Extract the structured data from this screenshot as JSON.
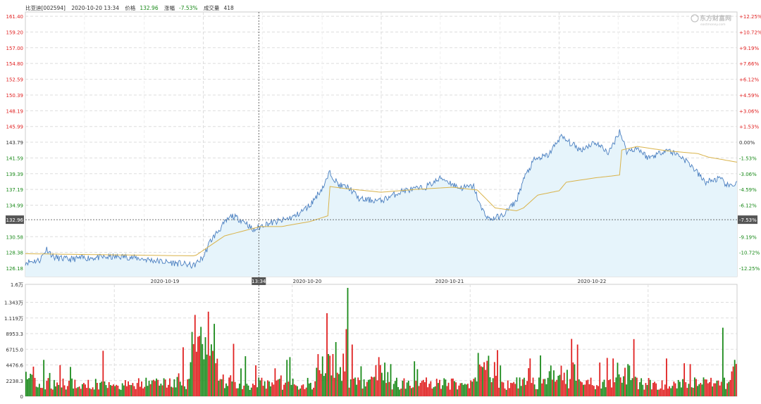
{
  "header": {
    "stock": "比亚迪[002594]",
    "datetime": "2020-10-20 13:34",
    "price_label": "价格",
    "price": "132.96",
    "change_label": "涨幅",
    "change": "-7.53%",
    "volume_label": "成交量",
    "volume": "418"
  },
  "watermark": {
    "name": "东方财富网",
    "url": "eastmoney.com"
  },
  "colors": {
    "up": "#e02020",
    "down": "#1a8a1a",
    "price_line": "#4a7fc0",
    "avg_line": "#d9b34a",
    "area_fill": "#e6f4fb",
    "grid": "#dddddd"
  },
  "chart_data": [
    {
      "type": "line",
      "title": "",
      "prev_close": 143.79,
      "ylim": [
        125.0,
        162.0
      ],
      "y_ticks": [
        "161.40",
        "159.20",
        "157.00",
        "154.80",
        "152.59",
        "150.39",
        "148.19",
        "145.99",
        "143.79",
        "141.59",
        "139.39",
        "137.19",
        "134.99",
        "132.96",
        "130.58",
        "128.38",
        "126.18"
      ],
      "pct_ticks": [
        "+12.25%",
        "+10.72%",
        "+9.19%",
        "+7.66%",
        "+6.12%",
        "+4.59%",
        "+3.06%",
        "+1.53%",
        "0.00%",
        "-1.53%",
        "-3.06%",
        "-4.59%",
        "-6.12%",
        "-7.53%",
        "-9.19%",
        "-10.72%",
        "-12.25%"
      ],
      "x_labels": [
        "2020-10-19",
        "2020-10-20",
        "2020-10-21",
        "2020-10-22"
      ],
      "crosshair": {
        "time": "13:34",
        "price": "132.96",
        "pct": "-7.53%"
      },
      "series": [
        {
          "points": [
            [
              0,
              127.0
            ],
            [
              0.02,
              127.3
            ],
            [
              0.03,
              128.9
            ],
            [
              0.04,
              127.7
            ],
            [
              0.06,
              127.4
            ],
            [
              0.08,
              127.6
            ],
            [
              0.11,
              127.7
            ],
            [
              0.14,
              127.8
            ],
            [
              0.17,
              127.4
            ],
            [
              0.2,
              127.0
            ],
            [
              0.22,
              126.8
            ],
            [
              0.236,
              126.5
            ],
            [
              0.25,
              127.7
            ],
            [
              0.26,
              130.0
            ],
            [
              0.28,
              132.5
            ],
            [
              0.29,
              133.5
            ],
            [
              0.31,
              132.6
            ],
            [
              0.32,
              131.4
            ],
            [
              0.335,
              132.3
            ],
            [
              0.36,
              132.8
            ],
            [
              0.38,
              133.5
            ],
            [
              0.4,
              135.0
            ],
            [
              0.42,
              137.8
            ],
            [
              0.428,
              139.6
            ],
            [
              0.44,
              137.8
            ],
            [
              0.455,
              137.4
            ],
            [
              0.47,
              135.8
            ],
            [
              0.5,
              135.6
            ],
            [
              0.53,
              137.0
            ],
            [
              0.56,
              137.4
            ],
            [
              0.585,
              138.8
            ],
            [
              0.61,
              137.4
            ],
            [
              0.63,
              137.6
            ],
            [
              0.64,
              134.6
            ],
            [
              0.652,
              133.0
            ],
            [
              0.67,
              133.5
            ],
            [
              0.69,
              135.6
            ],
            [
              0.7,
              138.6
            ],
            [
              0.715,
              141.3
            ],
            [
              0.735,
              142.0
            ],
            [
              0.752,
              144.6
            ],
            [
              0.78,
              142.7
            ],
            [
              0.8,
              143.8
            ],
            [
              0.82,
              142.3
            ],
            [
              0.835,
              145.4
            ],
            [
              0.845,
              142.5
            ],
            [
              0.86,
              143.0
            ],
            [
              0.875,
              141.6
            ],
            [
              0.89,
              142.2
            ],
            [
              0.9,
              142.8
            ],
            [
              0.92,
              141.9
            ],
            [
              0.935,
              140.6
            ],
            [
              0.955,
              138.2
            ],
            [
              0.975,
              138.7
            ],
            [
              0.99,
              137.5
            ],
            [
              1.0,
              138.3
            ]
          ]
        },
        {
          "points": [
            [
              0,
              128.2
            ],
            [
              0.236,
              127.9
            ],
            [
              0.24,
              128.0
            ],
            [
              0.28,
              130.7
            ],
            [
              0.33,
              132.0
            ],
            [
              0.36,
              132.0
            ],
            [
              0.4,
              132.7
            ],
            [
              0.425,
              133.5
            ],
            [
              0.428,
              137.6
            ],
            [
              0.45,
              137.3
            ],
            [
              0.5,
              136.8
            ],
            [
              0.55,
              137.2
            ],
            [
              0.6,
              137.5
            ],
            [
              0.635,
              137.1
            ],
            [
              0.66,
              134.6
            ],
            [
              0.69,
              134.2
            ],
            [
              0.7,
              134.6
            ],
            [
              0.72,
              136.4
            ],
            [
              0.75,
              137.0
            ],
            [
              0.76,
              138.2
            ],
            [
              0.8,
              138.8
            ],
            [
              0.835,
              139.2
            ],
            [
              0.838,
              142.7
            ],
            [
              0.86,
              143.2
            ],
            [
              0.9,
              142.6
            ],
            [
              0.945,
              142.2
            ],
            [
              0.96,
              141.7
            ],
            [
              1.0,
              141.0
            ]
          ]
        }
      ]
    },
    {
      "type": "bar",
      "title": "",
      "ylim": [
        0,
        16000
      ],
      "y_ticks": [
        "1.6万",
        "1.343万",
        "1.119万",
        "8953.3",
        "6715.0",
        "4476.6",
        "2238.3",
        "0"
      ],
      "bar_count": 480
    }
  ]
}
